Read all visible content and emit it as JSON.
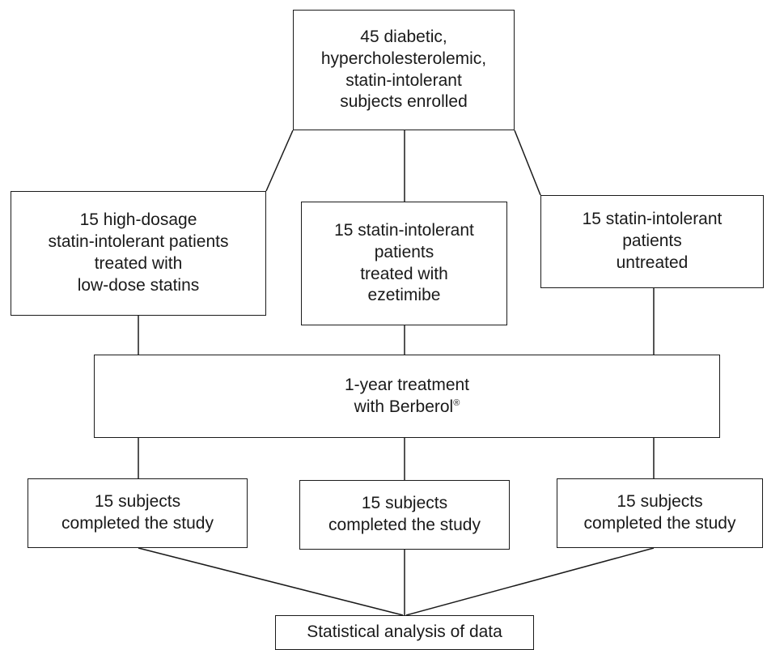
{
  "enrollment": {
    "lines": [
      "45 diabetic,",
      "hypercholesterolemic,",
      "statin-intolerant",
      "subjects enrolled"
    ]
  },
  "groups": [
    {
      "lines": [
        "15 high-dosage",
        "statin-intolerant patients",
        "treated with",
        "low-dose statins"
      ]
    },
    {
      "lines": [
        "15 statin-intolerant",
        "patients",
        "treated with",
        "ezetimibe"
      ]
    },
    {
      "lines": [
        "15 statin-intolerant",
        "patients",
        "untreated"
      ]
    }
  ],
  "treatment": {
    "line1": "1-year treatment",
    "line2_prefix": "with Berberol",
    "line2_sup": "®"
  },
  "completed": [
    {
      "lines": [
        "15 subjects",
        "completed the study"
      ]
    },
    {
      "lines": [
        "15 subjects",
        "completed the study"
      ]
    },
    {
      "lines": [
        "15 subjects",
        "completed the study"
      ]
    }
  ],
  "analysis": {
    "label": "Statistical analysis of data"
  }
}
